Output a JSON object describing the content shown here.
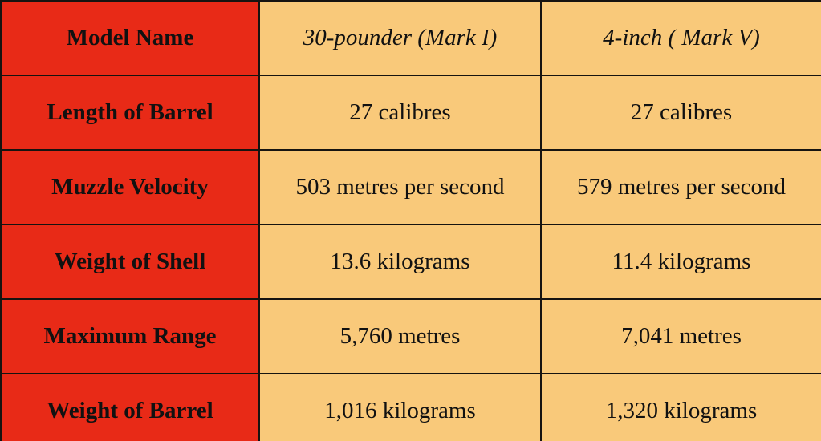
{
  "table": {
    "rows": [
      [
        "Model Name",
        "30-pounder (Mark I)",
        "4-inch ( Mark V)"
      ],
      [
        "Length of Barrel",
        "27 calibres",
        "27 calibres"
      ],
      [
        "Muzzle Velocity",
        "503 metres per second",
        "579 metres per second"
      ],
      [
        "Weight of Shell",
        "13.6 kilograms",
        "11.4 kilograms"
      ],
      [
        "Maximum Range",
        "5,760 metres",
        "7,041 metres"
      ],
      [
        "Weight of Barrel",
        "1,016 kilograms",
        "1,320 kilograms"
      ]
    ]
  }
}
